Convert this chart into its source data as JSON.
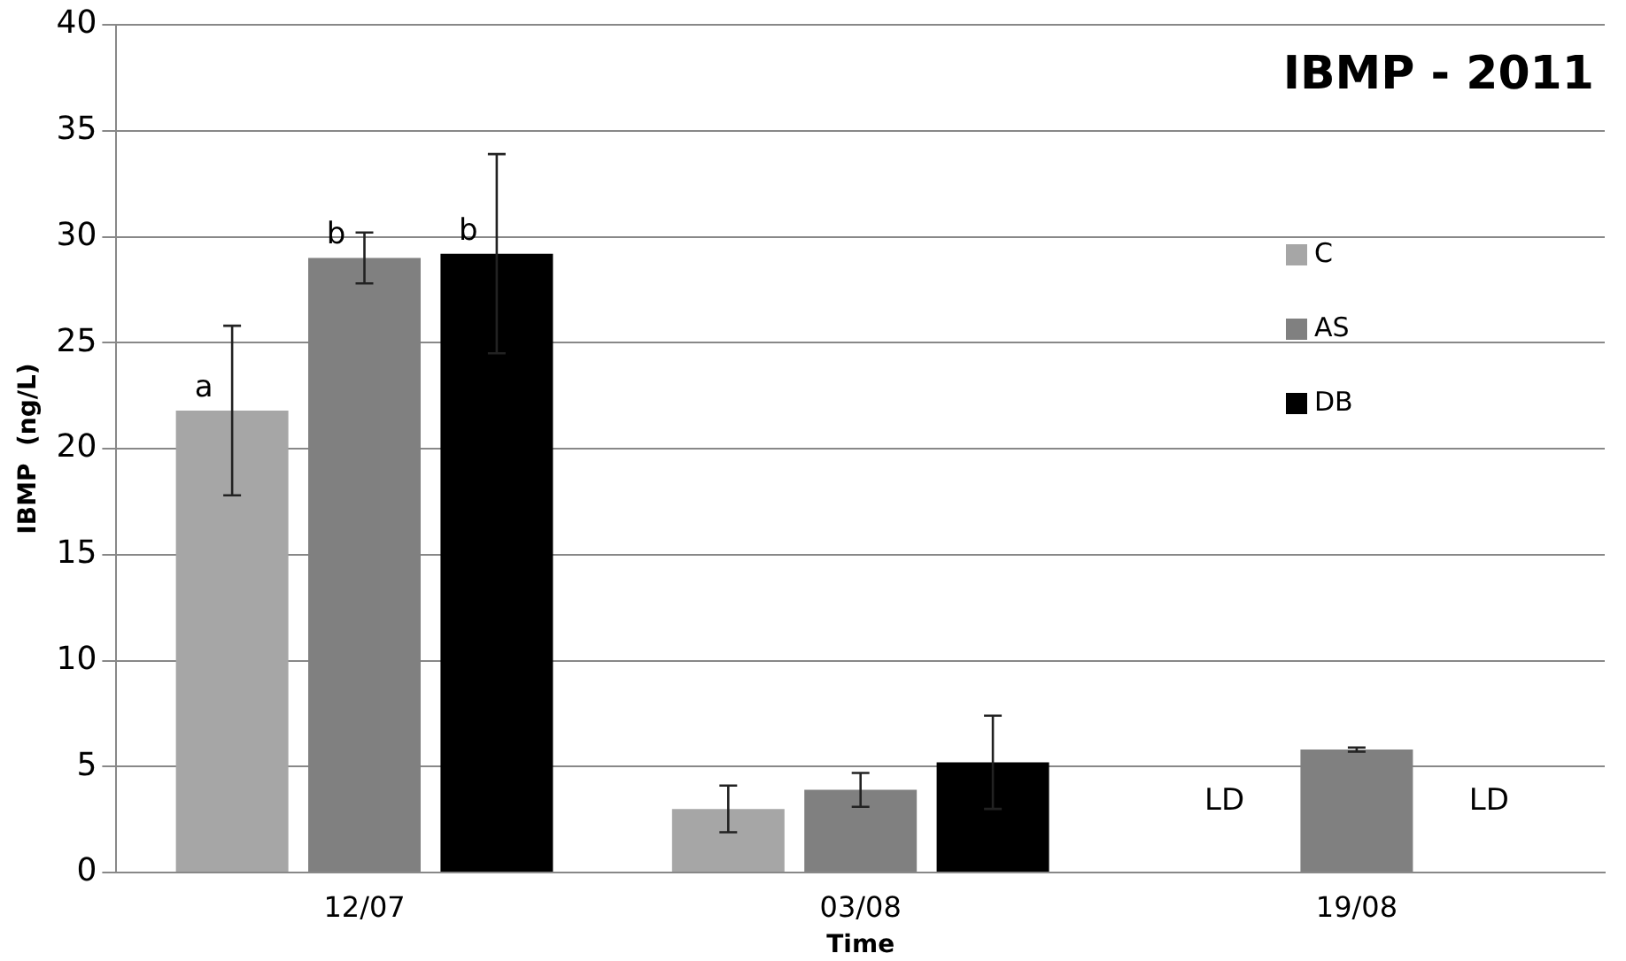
{
  "chart_data": {
    "type": "bar",
    "title": "IBMP - 2011",
    "xlabel": "Time",
    "ylabel": "IBMP  (ng/L)",
    "categories": [
      "12/07",
      "03/08",
      "19/08"
    ],
    "series": [
      {
        "name": "C",
        "color": "#a6a6a6",
        "values": [
          21.8,
          3.0,
          null
        ],
        "errors": [
          4.0,
          1.1,
          null
        ],
        "value_labels": [
          "a",
          null,
          "LD"
        ]
      },
      {
        "name": "AS",
        "color": "#808080",
        "values": [
          29.0,
          3.9,
          5.8
        ],
        "errors": [
          1.2,
          0.8,
          0.1
        ],
        "value_labels": [
          "b",
          null,
          null
        ]
      },
      {
        "name": "DB",
        "color": "#000000",
        "values": [
          29.2,
          5.2,
          null
        ],
        "errors": [
          4.7,
          2.2,
          null
        ],
        "value_labels": [
          "b",
          null,
          "LD"
        ]
      }
    ],
    "ylim": [
      0,
      40
    ],
    "yticks": [
      0,
      5,
      10,
      15,
      20,
      25,
      30,
      35,
      40
    ],
    "grid": "y",
    "legend": "right"
  }
}
